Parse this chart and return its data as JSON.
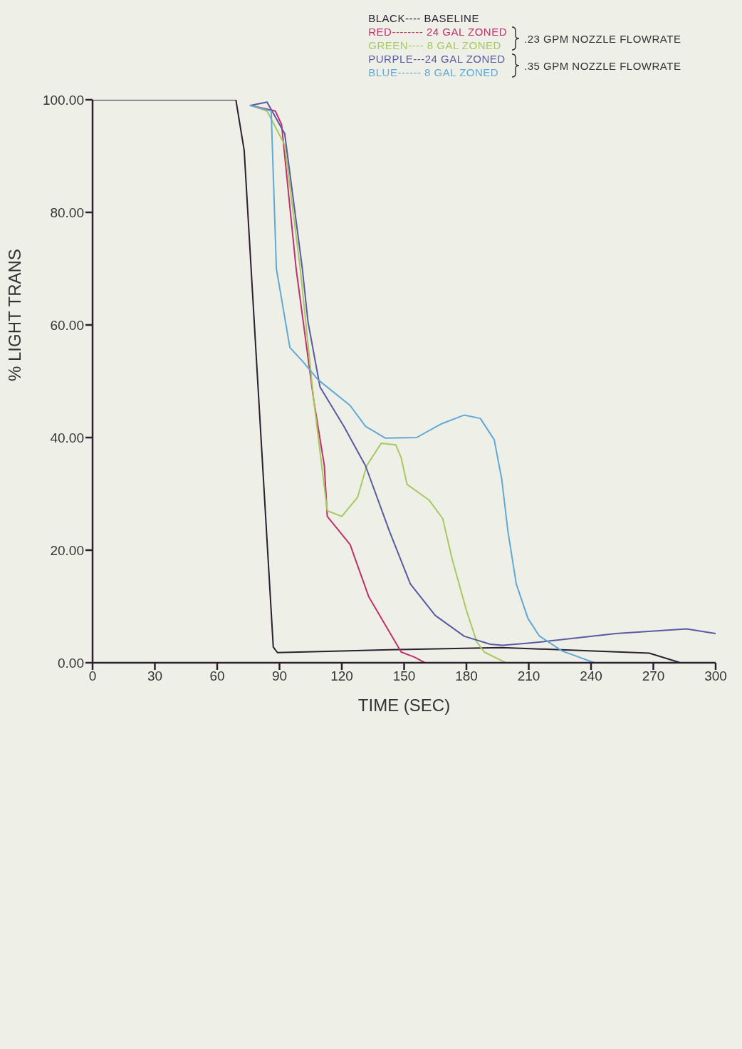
{
  "chart_data": {
    "type": "line",
    "xlabel": "TIME (SEC)",
    "ylabel": "% LIGHT TRANS",
    "xlim": [
      0,
      300
    ],
    "xticks": [
      0,
      30,
      60,
      90,
      120,
      150,
      180,
      210,
      240,
      270,
      300
    ],
    "ylim": [
      0,
      100
    ],
    "yticks": [
      {
        "value": 0,
        "label": "0.00"
      },
      {
        "value": 20,
        "label": "20.00"
      },
      {
        "value": 40,
        "label": "40.00"
      },
      {
        "value": 60,
        "label": "60.00"
      },
      {
        "value": 80,
        "label": "80.00"
      },
      {
        "value": 100,
        "label": "100.00"
      }
    ],
    "grid": false,
    "legend": "top right",
    "marker": "none",
    "line_style": "solid",
    "annotations": [
      ".23 GPM NOZZLE FLOWRATE",
      ".35 GPM NOZZLE FLOWRATE"
    ],
    "series": [
      {
        "name": "BLACK---- BASELINE",
        "color": "#2a2030",
        "x": [
          0,
          69,
          73,
          87,
          89,
          143,
          197,
          268,
          283
        ],
        "values": [
          100,
          100,
          91,
          2.8,
          1.8,
          2.3,
          2.7,
          1.7,
          0
        ]
      },
      {
        "name": "RED-------- 24 GAL ZONED",
        "color": "#c0306a",
        "x": [
          76,
          88,
          91,
          98,
          106.5,
          111.6,
          113,
          124,
          133,
          148.6,
          155,
          160
        ],
        "values": [
          99,
          98,
          95.6,
          70,
          46.6,
          35,
          26,
          21,
          11.7,
          1.9,
          1,
          0
        ]
      },
      {
        "name": "GREEN---- 8 GAL ZONED",
        "color": "#a8c860",
        "x": [
          76,
          84,
          92.5,
          100,
          106.5,
          113,
          120,
          127.6,
          132,
          139,
          146,
          148.6,
          151.4,
          162,
          168.6,
          173,
          180,
          185,
          188.6,
          199
        ],
        "values": [
          99,
          98,
          92,
          70,
          46.6,
          27,
          26,
          29.4,
          35,
          39,
          38.7,
          36.4,
          31.7,
          28.9,
          25.6,
          18.6,
          9.3,
          3.7,
          1.9,
          0
        ]
      },
      {
        "name": "PURPLE---24 GAL ZONED",
        "color": "#5a5aa0",
        "x": [
          76,
          84,
          92.5,
          101,
          103.7,
          109.5,
          121,
          131.4,
          143,
          153,
          165,
          179,
          191.5,
          197.5,
          210.6,
          216,
          252,
          286,
          300
        ],
        "values": [
          99,
          99.6,
          94,
          70,
          60.6,
          49,
          42,
          35,
          23.3,
          14,
          8.4,
          4.7,
          3.3,
          3.1,
          3.5,
          3.7,
          5.2,
          6,
          5.2
        ]
      },
      {
        "name": "BLUE------ 8 GAL ZONED",
        "color": "#60a8d8",
        "x": [
          76,
          86,
          88.5,
          95,
          101,
          108.5,
          124,
          131.4,
          141,
          156,
          167.7,
          179,
          186.7,
          193.4,
          197,
          200,
          204,
          209.6,
          215,
          226,
          241.6
        ],
        "values": [
          99,
          98,
          70,
          56,
          53.6,
          50.3,
          45.7,
          42,
          39.9,
          40,
          42.4,
          44,
          43.4,
          39.6,
          32.6,
          23.3,
          14,
          7.9,
          4.8,
          2.1,
          0
        ]
      }
    ]
  }
}
